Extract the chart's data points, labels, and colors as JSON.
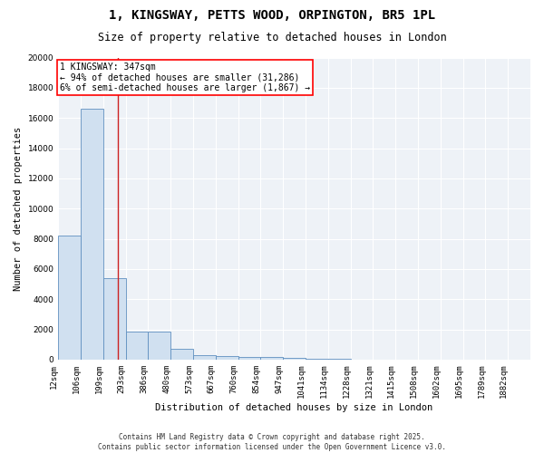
{
  "title": "1, KINGSWAY, PETTS WOOD, ORPINGTON, BR5 1PL",
  "subtitle": "Size of property relative to detached houses in London",
  "xlabel": "Distribution of detached houses by size in London",
  "ylabel": "Number of detached properties",
  "bar_values": [
    8200,
    16600,
    5400,
    1850,
    1850,
    700,
    300,
    250,
    200,
    150,
    100,
    50,
    30,
    20,
    10,
    5,
    3,
    2,
    1,
    1,
    0
  ],
  "bin_labels": [
    "12sqm",
    "106sqm",
    "199sqm",
    "293sqm",
    "386sqm",
    "480sqm",
    "573sqm",
    "667sqm",
    "760sqm",
    "854sqm",
    "947sqm",
    "1041sqm",
    "1134sqm",
    "1228sqm",
    "1321sqm",
    "1415sqm",
    "1508sqm",
    "1602sqm",
    "1695sqm",
    "1789sqm",
    "1882sqm"
  ],
  "bar_color": "#d0e0f0",
  "bar_edge_color": "#6090c0",
  "background_color": "#eef2f7",
  "annotation_text": "1 KINGSWAY: 347sqm\n← 94% of detached houses are smaller (31,286)\n6% of semi-detached houses are larger (1,867) →",
  "vline_pos": 2.67,
  "ylim": [
    0,
    20000
  ],
  "yticks": [
    0,
    2000,
    4000,
    6000,
    8000,
    10000,
    12000,
    14000,
    16000,
    18000,
    20000
  ],
  "footnote": "Contains HM Land Registry data © Crown copyright and database right 2025.\nContains public sector information licensed under the Open Government Licence v3.0.",
  "title_fontsize": 10,
  "subtitle_fontsize": 8.5,
  "tick_fontsize": 6.5,
  "ylabel_fontsize": 7.5,
  "xlabel_fontsize": 7.5,
  "annotation_fontsize": 7,
  "footnote_fontsize": 5.5
}
